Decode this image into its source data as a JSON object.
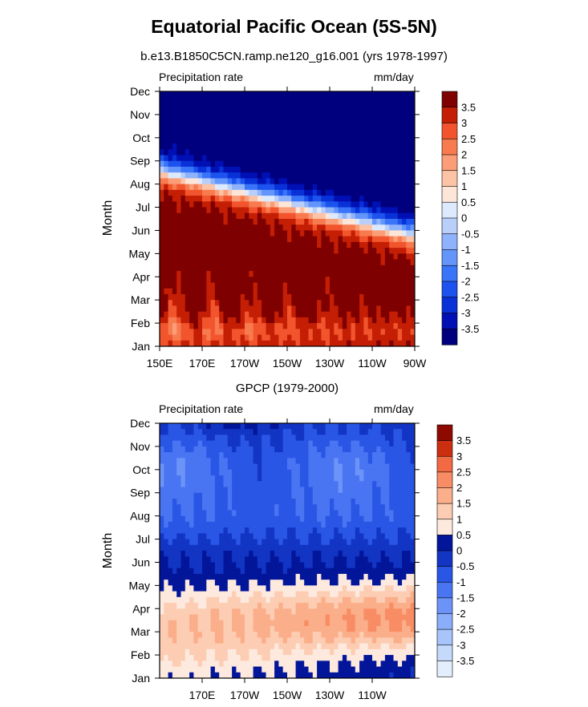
{
  "figure": {
    "title": "Equatorial Pacific Ocean (5S-5N)",
    "colors": {
      "neg": [
        "#00007f",
        "#0010b4",
        "#0831d7",
        "#1c52ee",
        "#3a74f8",
        "#6395fb",
        "#8eb2fb",
        "#b9cffa",
        "#dde9fc"
      ],
      "pos": [
        "#fde5d8",
        "#fcc3a6",
        "#fb9d77",
        "#f87a4f",
        "#f2552d",
        "#df3512",
        "#c41e05",
        "#a40d00",
        "#7f0000"
      ],
      "bottom_neg": [
        "#e3eefc",
        "#c5d9fb",
        "#a7c5fb",
        "#8aaefa",
        "#6c94f8",
        "#4975f3",
        "#2a56e6",
        "#1235c4",
        "#03169a"
      ],
      "bottom_pos": [
        "#fde9de",
        "#fccdb3",
        "#fbae8a",
        "#f88d65",
        "#f26a43",
        "#e34a27",
        "#cc2e10",
        "#ae1a03",
        "#8e0a00"
      ]
    }
  },
  "chart_data": [
    {
      "type": "heatmap",
      "subtitle": "b.e13.B1850C5CN.ramp.ne120_g16.001 (yrs 1978-1997)",
      "left_label": "Precipitation rate",
      "right_label": "mm/day",
      "xlabel": "",
      "ylabel": "Month",
      "x_tick_labels": [
        "150E",
        "170E",
        "170W",
        "150W",
        "130W",
        "110W",
        "90W"
      ],
      "x_ticks_deg_east": [
        150,
        170,
        190,
        210,
        230,
        250,
        270
      ],
      "xlim_deg_east": [
        150,
        270
      ],
      "y_tick_labels": [
        "Jan",
        "Feb",
        "Mar",
        "Apr",
        "May",
        "Jun",
        "Jul",
        "Aug",
        "Sep",
        "Oct",
        "Nov",
        "Dec"
      ],
      "colorbar_labels": [
        "3.5",
        "3",
        "2.5",
        "2",
        "1.5",
        "1",
        "0.5",
        "0",
        "-0.5",
        "-1",
        "-1.5",
        "-2",
        "-2.5",
        "-3",
        "-3.5"
      ],
      "levels": [
        -3.5,
        -3,
        -2.5,
        -2,
        -1.5,
        -1,
        -0.5,
        0,
        0.5,
        1,
        1.5,
        2,
        2.5,
        3,
        3.5
      ],
      "pattern_description": "",
      "grid": false
    },
    {
      "type": "heatmap",
      "subtitle": "GPCP (1979-2000)",
      "left_label": "Precipitation rate",
      "right_label": "mm/day",
      "xlabel": "",
      "ylabel": "Month",
      "x_tick_labels": [
        "170E",
        "170W",
        "150W",
        "130W",
        "110W"
      ],
      "x_ticks_deg_east": [
        170,
        190,
        210,
        230,
        250
      ],
      "xlim_deg_east": [
        150,
        270
      ],
      "y_tick_labels": [
        "Jan",
        "Feb",
        "Mar",
        "Apr",
        "May",
        "Jun",
        "Jul",
        "Aug",
        "Sep",
        "Oct",
        "Nov",
        "Dec"
      ],
      "colorbar_labels": [
        "3.5",
        "3",
        "2.5",
        "2",
        "1.5",
        "1",
        "0.5",
        "0",
        "-0.5",
        "-1",
        "-1.5",
        "-2",
        "-2.5",
        "-3",
        "-3.5"
      ],
      "levels": [
        -3.5,
        -3,
        -2.5,
        -2,
        -1.5,
        -1,
        -0.5,
        0,
        0.5,
        1,
        1.5,
        2,
        2.5,
        3,
        3.5
      ],
      "grid": false
    }
  ]
}
